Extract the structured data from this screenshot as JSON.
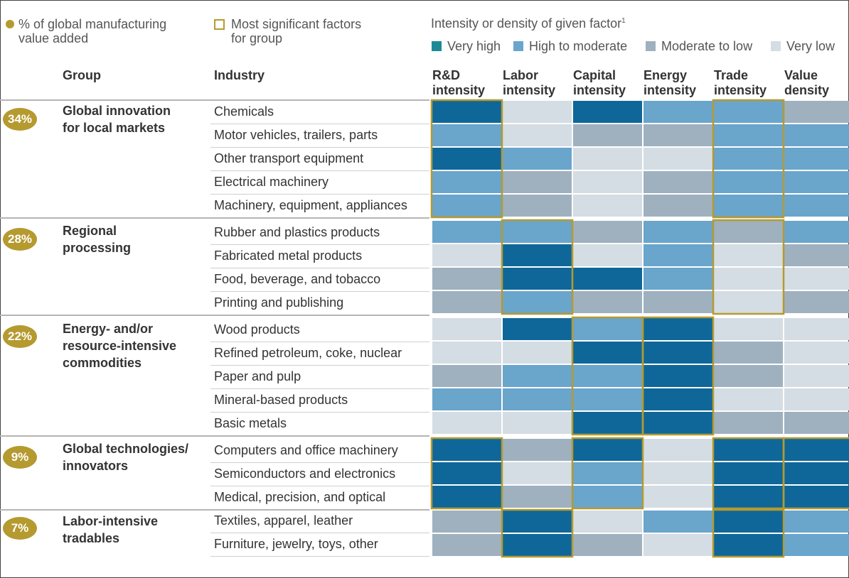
{
  "legend": {
    "dot_label_line1": "% of global manufacturing",
    "dot_label_line2": "value added",
    "square_label_line1": "Most significant factors",
    "square_label_line2": "for group"
  },
  "intensity_title": "Intensity or density of given factor",
  "intensity_footnote": "1",
  "headers": {
    "group": "Group",
    "industry": "Industry"
  },
  "colors": {
    "accent_gold": "#b59a2f",
    "very_high": "#0f6799",
    "high_to_moderate": "#6aa5cc",
    "moderate_to_low": "#9fb1bf",
    "very_low": "#d4dde3",
    "very_high_legend": "#1b8a98"
  },
  "chart_data": {
    "type": "heatmap",
    "title": "Intensity or density of given factor",
    "scale": [
      {
        "level": 4,
        "label": "Very high",
        "color": "#0f6799",
        "legend_color": "#1b8a98"
      },
      {
        "level": 3,
        "label": "High to moderate",
        "color": "#6aa5cc"
      },
      {
        "level": 2,
        "label": "Moderate to low",
        "color": "#9fb1bf"
      },
      {
        "level": 1,
        "label": "Very low",
        "color": "#d4dde3"
      }
    ],
    "columns": [
      {
        "line1": "R&D",
        "line2": "intensity"
      },
      {
        "line1": "Labor",
        "line2": "intensity"
      },
      {
        "line1": "Capital",
        "line2": "intensity"
      },
      {
        "line1": "Energy",
        "line2": "intensity"
      },
      {
        "line1": "Trade",
        "line2": "intensity"
      },
      {
        "line1": "Value",
        "line2": "density"
      }
    ],
    "groups": [
      {
        "share": "34%",
        "name_line1": "Global innovation",
        "name_line2": "for local markets",
        "name_line3": "",
        "significant_columns": [
          0,
          4
        ],
        "industries": [
          {
            "name": "Chemicals",
            "values": [
              4,
              1,
              4,
              3,
              3,
              2
            ]
          },
          {
            "name": "Motor vehicles, trailers, parts",
            "values": [
              3,
              1,
              2,
              2,
              3,
              3
            ]
          },
          {
            "name": "Other transport equipment",
            "values": [
              4,
              3,
              1,
              1,
              3,
              3
            ]
          },
          {
            "name": "Electrical machinery",
            "values": [
              3,
              2,
              1,
              2,
              3,
              3
            ]
          },
          {
            "name": "Machinery, equipment, appliances",
            "values": [
              3,
              2,
              1,
              2,
              3,
              3
            ]
          }
        ]
      },
      {
        "share": "28%",
        "name_line1": "Regional",
        "name_line2": "processing",
        "name_line3": "",
        "significant_columns": [
          1,
          4
        ],
        "industries": [
          {
            "name": "Rubber and plastics products",
            "values": [
              3,
              3,
              2,
              3,
              2,
              3
            ]
          },
          {
            "name": "Fabricated metal products",
            "values": [
              1,
              4,
              1,
              3,
              1,
              2
            ]
          },
          {
            "name": "Food, beverage, and tobacco",
            "values": [
              2,
              4,
              4,
              3,
              1,
              1
            ]
          },
          {
            "name": "Printing and publishing",
            "values": [
              2,
              3,
              2,
              2,
              1,
              2
            ]
          }
        ]
      },
      {
        "share": "22%",
        "name_line1": "Energy- and/or",
        "name_line2": "resource-intensive",
        "name_line3": "commodities",
        "significant_columns": [
          2,
          3
        ],
        "industries": [
          {
            "name": "Wood products",
            "values": [
              1,
              4,
              3,
              4,
              1,
              1
            ]
          },
          {
            "name": "Refined petroleum, coke, nuclear",
            "values": [
              1,
              1,
              4,
              4,
              2,
              1
            ]
          },
          {
            "name": "Paper and pulp",
            "values": [
              2,
              3,
              3,
              4,
              2,
              1
            ]
          },
          {
            "name": "Mineral-based products",
            "values": [
              3,
              3,
              3,
              4,
              1,
              1
            ]
          },
          {
            "name": "Basic metals",
            "values": [
              1,
              1,
              4,
              4,
              2,
              2
            ]
          }
        ]
      },
      {
        "share": "9%",
        "name_line1": "Global technologies/",
        "name_line2": "innovators",
        "name_line3": "",
        "significant_columns": [
          0,
          2,
          4,
          5
        ],
        "industries": [
          {
            "name": "Computers and office machinery",
            "values": [
              4,
              2,
              4,
              1,
              4,
              4
            ]
          },
          {
            "name": "Semiconductors and electronics",
            "values": [
              4,
              1,
              3,
              1,
              4,
              4
            ]
          },
          {
            "name": "Medical, precision, and optical",
            "values": [
              4,
              2,
              3,
              1,
              4,
              4
            ]
          }
        ]
      },
      {
        "share": "7%",
        "name_line1": "Labor-intensive",
        "name_line2": "tradables",
        "name_line3": "",
        "significant_columns": [
          1,
          4
        ],
        "industries": [
          {
            "name": "Textiles, apparel, leather",
            "values": [
              2,
              4,
              1,
              3,
              4,
              3
            ]
          },
          {
            "name": "Furniture, jewelry, toys, other",
            "values": [
              2,
              4,
              2,
              1,
              4,
              3
            ]
          }
        ]
      }
    ]
  }
}
